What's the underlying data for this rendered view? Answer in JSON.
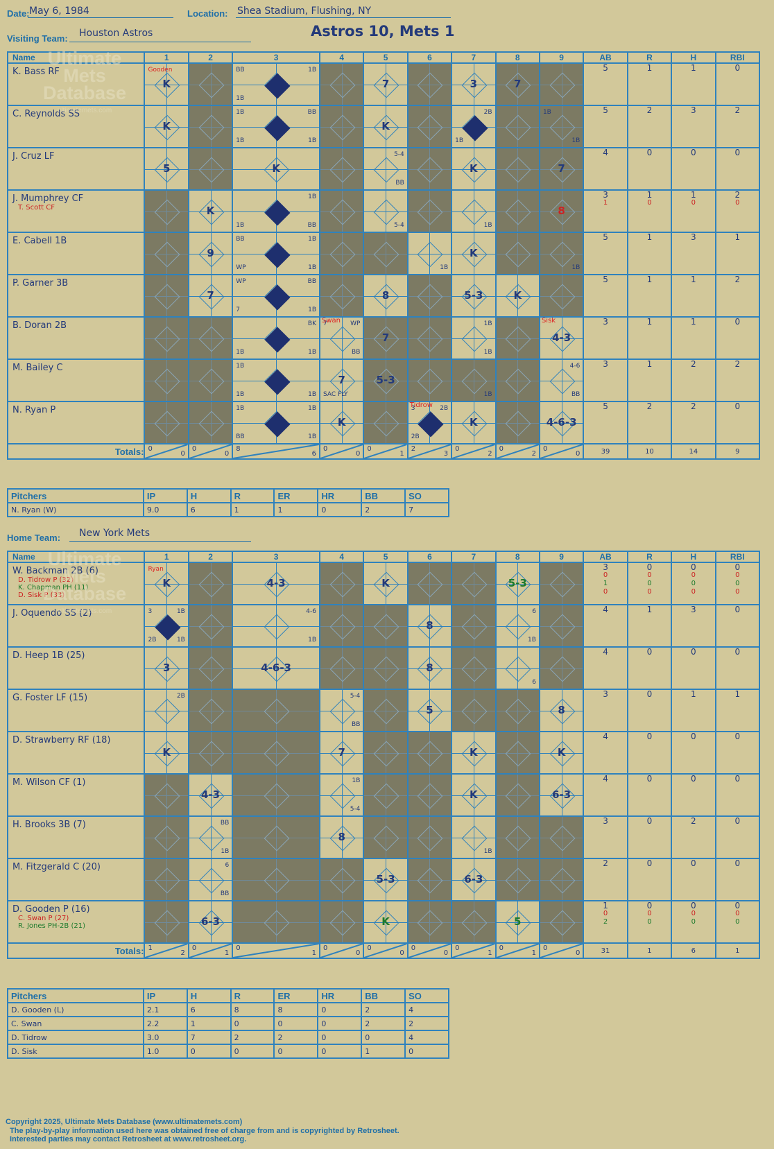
{
  "header": {
    "date_label": "Date:",
    "date": "May 6, 1984",
    "location_label": "Location:",
    "location": "Shea Stadium, Flushing, NY",
    "visiting_label": "Visiting Team:",
    "visiting_team": "Houston Astros",
    "home_label": "Home Team:",
    "home_team": "New York Mets",
    "title": "Astros 10, Mets 1"
  },
  "watermark": {
    "line1": "Ultimate",
    "line2": "Mets",
    "line3": "Database",
    "url": "ultimatemets.com"
  },
  "columns": {
    "name": "Name",
    "innings": [
      "1",
      "2",
      "3",
      "4",
      "5",
      "6",
      "7",
      "8",
      "9"
    ],
    "stats": [
      "AB",
      "R",
      "H",
      "RBI"
    ]
  },
  "totals_label": "Totals:",
  "rh_labels": {
    "r": "R",
    "h": "H"
  },
  "pitchers_header": [
    "Pitchers",
    "IP",
    "H",
    "R",
    "ER",
    "HR",
    "BB",
    "SO"
  ],
  "visitors": {
    "batters": [
      {
        "name": "K. Bass RF",
        "subs": [],
        "ab": [
          "5"
        ],
        "r": [
          "1"
        ],
        "h": [
          "1"
        ],
        "rbi": [
          "0"
        ]
      },
      {
        "name": "C. Reynolds SS",
        "subs": [],
        "ab": [
          "5"
        ],
        "r": [
          "2"
        ],
        "h": [
          "3"
        ],
        "rbi": [
          "2"
        ]
      },
      {
        "name": "J. Cruz LF",
        "subs": [],
        "ab": [
          "4"
        ],
        "r": [
          "0"
        ],
        "h": [
          "0"
        ],
        "rbi": [
          "0"
        ]
      },
      {
        "name": "J. Mumphrey CF",
        "subs": [
          {
            "name": "T. Scott CF",
            "color": "red"
          }
        ],
        "ab": [
          "3",
          "1"
        ],
        "r": [
          "1",
          "0"
        ],
        "h": [
          "1",
          "0"
        ],
        "rbi": [
          "2",
          "0"
        ]
      },
      {
        "name": "E. Cabell 1B",
        "subs": [],
        "ab": [
          "5"
        ],
        "r": [
          "1"
        ],
        "h": [
          "3"
        ],
        "rbi": [
          "1"
        ]
      },
      {
        "name": "P. Garner 3B",
        "subs": [],
        "ab": [
          "5"
        ],
        "r": [
          "1"
        ],
        "h": [
          "1"
        ],
        "rbi": [
          "2"
        ]
      },
      {
        "name": "B. Doran 2B",
        "subs": [],
        "ab": [
          "3"
        ],
        "r": [
          "1"
        ],
        "h": [
          "1"
        ],
        "rbi": [
          "0"
        ]
      },
      {
        "name": "M. Bailey C",
        "subs": [],
        "ab": [
          "3"
        ],
        "r": [
          "1"
        ],
        "h": [
          "2"
        ],
        "rbi": [
          "2"
        ]
      },
      {
        "name": "N. Ryan P",
        "subs": [],
        "ab": [
          "5"
        ],
        "r": [
          "2"
        ],
        "h": [
          "2"
        ],
        "rbi": [
          "0"
        ]
      }
    ],
    "innings_rh": [
      {
        "r": "0",
        "h": "0"
      },
      {
        "r": "0",
        "h": "0"
      },
      {
        "r": "8",
        "h": "6"
      },
      {
        "r": "0",
        "h": "0"
      },
      {
        "r": "0",
        "h": "1"
      },
      {
        "r": "2",
        "h": "3"
      },
      {
        "r": "0",
        "h": "2"
      },
      {
        "r": "0",
        "h": "2"
      },
      {
        "r": "0",
        "h": "0"
      }
    ],
    "totals": {
      "ab": "39",
      "r": "10",
      "h": "14",
      "rbi": "9"
    },
    "pitchers": [
      {
        "name": "N. Ryan (W)",
        "ip": "9.0",
        "h": "6",
        "r": "1",
        "er": "1",
        "hr": "0",
        "bb": "2",
        "so": "7"
      }
    ]
  },
  "home": {
    "batters": [
      {
        "name": "W. Backman 2B (6)",
        "subs": [
          {
            "name": "D. Tidrow P (32)",
            "color": "red"
          },
          {
            "name": "K. Chapman PH (11)",
            "color": "green"
          },
          {
            "name": "D. Sisk P (33)",
            "color": "red"
          }
        ],
        "ab": [
          "3",
          "0",
          "1",
          "0"
        ],
        "r": [
          "0",
          "0",
          "0",
          "0"
        ],
        "h": [
          "0",
          "0",
          "0",
          "0"
        ],
        "rbi": [
          "0",
          "0",
          "0",
          "0"
        ]
      },
      {
        "name": "J. Oquendo SS (2)",
        "subs": [],
        "ab": [
          "4"
        ],
        "r": [
          "1"
        ],
        "h": [
          "3"
        ],
        "rbi": [
          "0"
        ]
      },
      {
        "name": "D. Heep 1B (25)",
        "subs": [],
        "ab": [
          "4"
        ],
        "r": [
          "0"
        ],
        "h": [
          "0"
        ],
        "rbi": [
          "0"
        ]
      },
      {
        "name": "G. Foster LF (15)",
        "subs": [],
        "ab": [
          "3"
        ],
        "r": [
          "0"
        ],
        "h": [
          "1"
        ],
        "rbi": [
          "1"
        ]
      },
      {
        "name": "D. Strawberry RF (18)",
        "subs": [],
        "ab": [
          "4"
        ],
        "r": [
          "0"
        ],
        "h": [
          "0"
        ],
        "rbi": [
          "0"
        ]
      },
      {
        "name": "M. Wilson CF (1)",
        "subs": [],
        "ab": [
          "4"
        ],
        "r": [
          "0"
        ],
        "h": [
          "0"
        ],
        "rbi": [
          "0"
        ]
      },
      {
        "name": "H. Brooks 3B (7)",
        "subs": [],
        "ab": [
          "3"
        ],
        "r": [
          "0"
        ],
        "h": [
          "2"
        ],
        "rbi": [
          "0"
        ]
      },
      {
        "name": "M. Fitzgerald C (20)",
        "subs": [],
        "ab": [
          "2"
        ],
        "r": [
          "0"
        ],
        "h": [
          "0"
        ],
        "rbi": [
          "0"
        ]
      },
      {
        "name": "D. Gooden P (16)",
        "subs": [
          {
            "name": "C. Swan P (27)",
            "color": "red"
          },
          {
            "name": "R. Jones PH-2B (21)",
            "color": "green"
          }
        ],
        "ab": [
          "1",
          "0",
          "2"
        ],
        "r": [
          "0",
          "0",
          "0"
        ],
        "h": [
          "0",
          "0",
          "0"
        ],
        "rbi": [
          "0",
          "0",
          "0"
        ]
      }
    ],
    "innings_rh": [
      {
        "r": "1",
        "h": "2"
      },
      {
        "r": "0",
        "h": "1"
      },
      {
        "r": "0",
        "h": "1"
      },
      {
        "r": "0",
        "h": "0"
      },
      {
        "r": "0",
        "h": "0"
      },
      {
        "r": "0",
        "h": "0"
      },
      {
        "r": "0",
        "h": "1"
      },
      {
        "r": "0",
        "h": "1"
      },
      {
        "r": "0",
        "h": "0"
      }
    ],
    "totals": {
      "ab": "31",
      "r": "1",
      "h": "6",
      "rbi": "1"
    },
    "pitchers": [
      {
        "name": "D. Gooden (L)",
        "ip": "2.1",
        "h": "6",
        "r": "8",
        "er": "8",
        "hr": "0",
        "bb": "2",
        "so": "4"
      },
      {
        "name": "C. Swan",
        "ip": "2.2",
        "h": "1",
        "r": "0",
        "er": "0",
        "hr": "0",
        "bb": "2",
        "so": "2"
      },
      {
        "name": "D. Tidrow",
        "ip": "3.0",
        "h": "7",
        "r": "2",
        "er": "2",
        "hr": "0",
        "bb": "0",
        "so": "4"
      },
      {
        "name": "D. Sisk",
        "ip": "1.0",
        "h": "0",
        "r": "0",
        "er": "0",
        "hr": "0",
        "bb": "1",
        "so": "0"
      }
    ]
  },
  "grid_visitors": [
    [
      "K|tl:Gooden!",
      "",
      "S|tl:BB|tr:1B|bl:1B",
      "",
      "7",
      "",
      "3",
      "7",
      "",
      ""
    ],
    [
      "K",
      "",
      "S|tl:1B|tr:BB|bl:1B|br:1B",
      "",
      "K",
      "",
      "S|tr:2B|bl:1B",
      "",
      "|tl:1B|br:1B",
      ""
    ],
    [
      "5",
      "",
      "K",
      "",
      "|tr:5-4|br:BB",
      "",
      "K",
      "",
      "7",
      ""
    ],
    [
      "",
      "K",
      "S|tr:1B|bl:1B|br:BB",
      "",
      "|br:5-4",
      "",
      "|br:1B",
      "",
      "8r",
      ""
    ],
    [
      "",
      "9",
      "S|tl:BB|tr:1B|bl:WP|br:1B",
      "",
      "",
      "|br:1B",
      "K",
      "",
      "|br:1B",
      ""
    ],
    [
      "",
      "7",
      "S|tl:WP|tr:BB|bl:7|br:1B",
      "",
      "8",
      "",
      "5-3",
      "K",
      "",
      ""
    ],
    [
      "",
      "",
      "S|tr:BK|bl:1B|br:1B",
      "|tl:7|tr:WP|br:BB|n:Swan",
      "7",
      "",
      "|tr:1B|br:1B",
      "",
      "4-3|n:Sisk",
      ""
    ],
    [
      "",
      "",
      "S|tl:1B|bl:1B|br:1B",
      "7|bl:SAC FLY",
      "5-3",
      "",
      "|br:1B",
      "",
      "|tr:4-6|br:BB",
      ""
    ],
    [
      "",
      "",
      "S|tl:1B|tr:1B|bl:BB|br:1B",
      "K",
      "",
      "S|tl:3|tr:2B|bl:2B|n:Tidrow",
      "K",
      "",
      "4-6-3",
      ""
    ]
  ],
  "grid_home": [
    [
      "K|tl:Ryan!",
      "",
      "4-3",
      "",
      "K",
      "",
      "",
      "5-3g",
      "",
      ""
    ],
    [
      "S|tl:3|tr:1B|bl:2B|br:1B",
      "",
      "|tr:4-6|br:1B",
      "",
      "",
      "8",
      "",
      "|tr:6|br:1B",
      "",
      ""
    ],
    [
      "3",
      "",
      "4-6-3",
      "",
      "",
      "8",
      "",
      "|br:6",
      "",
      ""
    ],
    [
      "|tr:2B",
      "",
      "",
      "|tr:5-4|br:BB",
      "",
      "5",
      "",
      "",
      "8",
      ""
    ],
    [
      "K",
      "",
      "",
      "7",
      "",
      "",
      "K",
      "",
      "K",
      ""
    ],
    [
      "",
      "4-3",
      "",
      "|tr:1B|br:5-4",
      "",
      "",
      "K",
      "",
      "6-3",
      ""
    ],
    [
      "",
      "|tr:BB|br:1B",
      "",
      "8",
      "",
      "",
      "|br:1B",
      "",
      "",
      ""
    ],
    [
      "",
      "|tr:6|br:BB",
      "",
      "",
      "5-3",
      "",
      "6-3",
      "",
      "",
      ""
    ],
    [
      "",
      "6-3",
      "",
      "",
      "Kg",
      "",
      "",
      "5g",
      "",
      ""
    ]
  ],
  "footer": {
    "line1": "Copyright 2025, Ultimate Mets Database (www.ultimatemets.com)",
    "line2": "The play-by-play information used here was obtained free of charge from and is copyrighted by Retrosheet.",
    "line3": "Interested parties may contact Retrosheet at www.retrosheet.org."
  }
}
